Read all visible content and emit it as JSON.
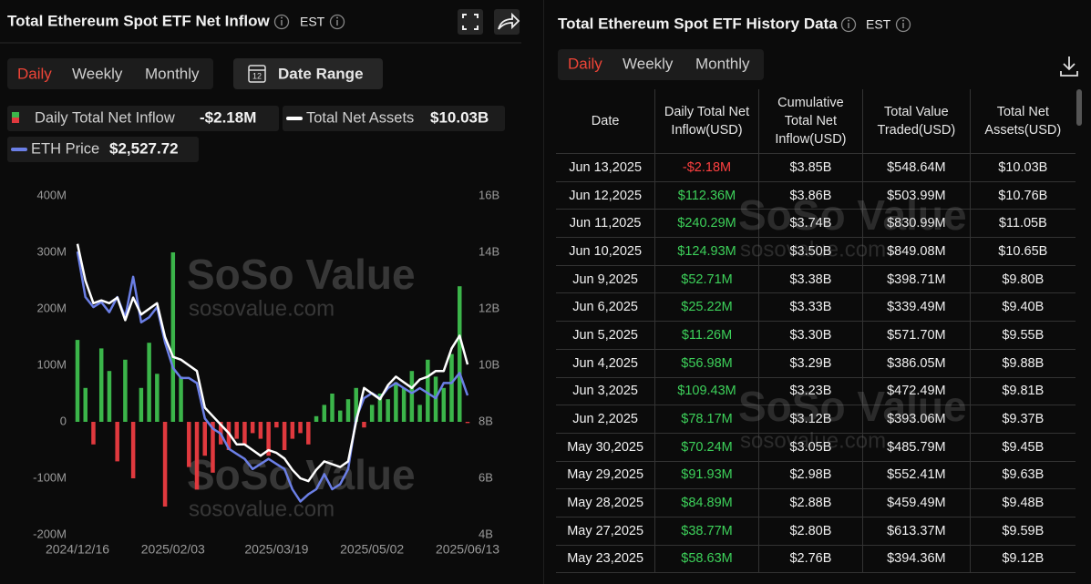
{
  "left_panel": {
    "title": "Total Ethereum Spot ETF Net Inflow",
    "timezone": "EST",
    "tabs": [
      "Daily",
      "Weekly",
      "Monthly"
    ],
    "active_tab": 0,
    "date_range": "Date Range",
    "calendar_icon_text": "12",
    "watermark": "SoSo Value",
    "watermark_url": "sosovalue.com"
  },
  "chart_data": {
    "type": "bar-line",
    "categories": [
      "2024/12/16",
      null,
      null,
      null,
      null,
      null,
      null,
      null,
      null,
      null,
      null,
      null,
      "2025/02/03",
      null,
      null,
      null,
      null,
      null,
      null,
      null,
      null,
      null,
      null,
      null,
      null,
      "2025/03/19",
      null,
      null,
      null,
      null,
      null,
      null,
      null,
      null,
      null,
      null,
      null,
      "2025/05/02",
      null,
      null,
      null,
      null,
      null,
      null,
      null,
      null,
      null,
      null,
      null,
      "2025/06/13"
    ],
    "series": [
      {
        "name": "Daily Total Net Inflow",
        "legend_value": "-$2.18M",
        "chart": "bar",
        "axis": "y",
        "color": "#3bb54a",
        "negative_color": "#e0393e",
        "values": [
          145,
          60,
          -40,
          130,
          90,
          -70,
          110,
          -100,
          60,
          140,
          85,
          -150,
          300,
          80,
          -80,
          -120,
          -60,
          -90,
          -40,
          -50,
          -30,
          -40,
          -20,
          -30,
          -60,
          -10,
          -50,
          -30,
          -20,
          -40,
          10,
          30,
          50,
          20,
          40,
          60,
          -10,
          30,
          50,
          40,
          70,
          60,
          90,
          30,
          110,
          80,
          60,
          120,
          240,
          -2.18
        ]
      },
      {
        "name": "Total Net Assets",
        "legend_value": "$10.03B",
        "chart": "line",
        "axis": "y2",
        "color": "#ffffff",
        "values": [
          14.3,
          13.0,
          12.2,
          12.3,
          12.2,
          12.4,
          11.6,
          12.4,
          11.8,
          12.0,
          12.2,
          11.0,
          10.3,
          10.2,
          10.0,
          9.8,
          8.5,
          8.2,
          7.9,
          7.6,
          7.2,
          7.2,
          7.0,
          6.8,
          7.0,
          6.9,
          6.7,
          6.3,
          6.0,
          5.9,
          6.3,
          6.6,
          6.5,
          6.4,
          6.6,
          8.0,
          9.2,
          9.0,
          8.8,
          9.3,
          9.6,
          9.4,
          9.2,
          9.5,
          9.6,
          9.8,
          9.8,
          10.6,
          11.05,
          10.03
        ]
      },
      {
        "name": "ETH Price",
        "legend_value": "$2,527.72",
        "chart": "line",
        "axis": "y3",
        "color": "#6b7fe6",
        "values": [
          3950,
          3500,
          3400,
          3450,
          3350,
          3500,
          3300,
          3700,
          3250,
          3300,
          3400,
          3050,
          2800,
          2700,
          2700,
          2650,
          2300,
          2200,
          2150,
          2000,
          1950,
          1900,
          1800,
          1850,
          1900,
          1850,
          1800,
          1600,
          1480,
          1550,
          1600,
          1750,
          1600,
          1650,
          1800,
          2300,
          2500,
          2550,
          2500,
          2600,
          2650,
          2600,
          2550,
          2600,
          2550,
          2500,
          2650,
          2650,
          2750,
          2527.72
        ]
      }
    ],
    "ylim": [
      -200,
      400
    ],
    "yticks": [
      {
        "value": -200,
        "label": "-200M"
      },
      {
        "value": -100,
        "label": "-100M"
      },
      0,
      {
        "value": 100,
        "label": "100M"
      },
      {
        "value": 200,
        "label": "200M"
      },
      {
        "value": 300,
        "label": "300M"
      },
      {
        "value": 400,
        "label": "400M"
      }
    ],
    "y2lim": [
      4,
      16
    ],
    "y2ticks": [
      {
        "value": 4,
        "label": "4B"
      },
      {
        "value": 6,
        "label": "6B"
      },
      {
        "value": 8,
        "label": "8B"
      },
      {
        "value": 10,
        "label": "10B"
      },
      {
        "value": 12,
        "label": "12B"
      },
      {
        "value": 14,
        "label": "14B"
      },
      {
        "value": 16,
        "label": "16B"
      }
    ],
    "y3lim": [
      1150,
      4500
    ],
    "grid": false
  },
  "right_panel": {
    "title": "Total Ethereum Spot ETF History Data",
    "timezone": "EST",
    "tabs": [
      "Daily",
      "Weekly",
      "Monthly"
    ],
    "active_tab": 0
  },
  "table": {
    "columns": [
      "Date",
      "Daily Total Net Inflow(USD)",
      "Cumulative Total Net Inflow(USD)",
      "Total Value Traded(USD)",
      "Total Net Assets(USD)"
    ],
    "rows": [
      [
        "Jun 13,2025",
        "-$2.18M",
        "$3.85B",
        "$548.64M",
        "$10.03B"
      ],
      [
        "Jun 12,2025",
        "$112.36M",
        "$3.86B",
        "$503.99M",
        "$10.76B"
      ],
      [
        "Jun 11,2025",
        "$240.29M",
        "$3.74B",
        "$830.99M",
        "$11.05B"
      ],
      [
        "Jun 10,2025",
        "$124.93M",
        "$3.50B",
        "$849.08M",
        "$10.65B"
      ],
      [
        "Jun 9,2025",
        "$52.71M",
        "$3.38B",
        "$398.71M",
        "$9.80B"
      ],
      [
        "Jun 6,2025",
        "$25.22M",
        "$3.33B",
        "$339.49M",
        "$9.40B"
      ],
      [
        "Jun 5,2025",
        "$11.26M",
        "$3.30B",
        "$571.70M",
        "$9.55B"
      ],
      [
        "Jun 4,2025",
        "$56.98M",
        "$3.29B",
        "$386.05M",
        "$9.88B"
      ],
      [
        "Jun 3,2025",
        "$109.43M",
        "$3.23B",
        "$472.49M",
        "$9.81B"
      ],
      [
        "Jun 2,2025",
        "$78.17M",
        "$3.12B",
        "$393.06M",
        "$9.37B"
      ],
      [
        "May 30,2025",
        "$70.24M",
        "$3.05B",
        "$485.79M",
        "$9.45B"
      ],
      [
        "May 29,2025",
        "$91.93M",
        "$2.98B",
        "$552.41M",
        "$9.63B"
      ],
      [
        "May 28,2025",
        "$84.89M",
        "$2.88B",
        "$459.49M",
        "$9.48B"
      ],
      [
        "May 27,2025",
        "$38.77M",
        "$2.80B",
        "$613.37M",
        "$9.59B"
      ],
      [
        "May 23,2025",
        "$58.63M",
        "$2.76B",
        "$394.36M",
        "$9.12B"
      ]
    ]
  }
}
